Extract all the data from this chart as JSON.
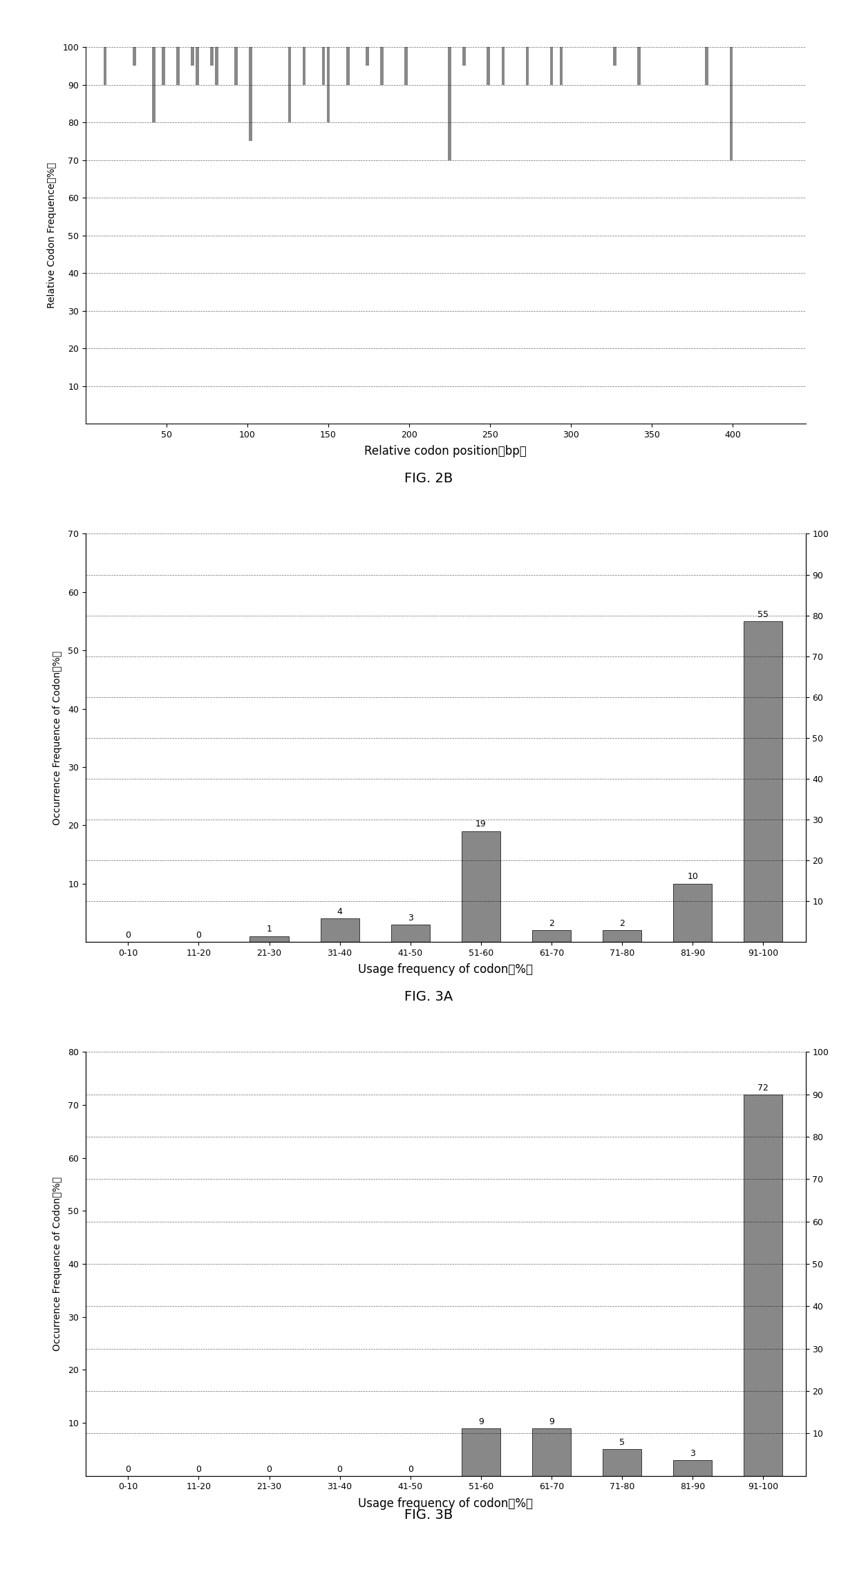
{
  "fig2b": {
    "title": "FIG. 2B",
    "xlabel": "Relative codon position（bp）",
    "ylabel": "Relative Codon Frequence（%）",
    "xlim": [
      0,
      445
    ],
    "ylim": [
      0,
      100
    ],
    "yticks": [
      10,
      20,
      30,
      40,
      50,
      60,
      70,
      80,
      90,
      100
    ],
    "xtick_vals": [
      50,
      100,
      150,
      200,
      250,
      300,
      350,
      400
    ],
    "bar_positions": [
      3,
      6,
      9,
      12,
      15,
      18,
      21,
      24,
      27,
      30,
      33,
      36,
      39,
      42,
      45,
      48,
      51,
      54,
      57,
      60,
      63,
      66,
      69,
      72,
      75,
      78,
      81,
      84,
      87,
      90,
      93,
      96,
      99,
      102,
      105,
      108,
      111,
      114,
      117,
      120,
      123,
      126,
      129,
      132,
      135,
      138,
      141,
      144,
      147,
      150,
      153,
      156,
      159,
      162,
      165,
      168,
      171,
      174,
      177,
      180,
      183,
      186,
      189,
      192,
      195,
      198,
      201,
      204,
      207,
      210,
      213,
      216,
      219,
      222,
      225,
      228,
      231,
      234,
      237,
      240,
      243,
      246,
      249,
      252,
      255,
      258,
      261,
      264,
      267,
      270,
      273,
      276,
      279,
      282,
      285,
      288,
      291,
      294,
      297,
      300,
      303,
      306,
      309,
      312,
      315,
      318,
      321,
      324,
      327,
      330,
      333,
      336,
      339,
      342,
      345,
      348,
      351,
      354,
      357,
      360,
      363,
      366,
      369,
      372,
      375,
      378,
      381,
      384,
      387,
      390,
      393,
      396,
      399,
      402,
      405,
      408,
      411,
      414,
      417,
      420,
      423,
      426,
      429,
      432,
      435
    ],
    "bar_bottoms": [
      100,
      100,
      100,
      90,
      100,
      100,
      100,
      100,
      100,
      95,
      100,
      100,
      100,
      80,
      100,
      90,
      100,
      100,
      90,
      100,
      100,
      95,
      90,
      100,
      100,
      95,
      90,
      100,
      100,
      100,
      90,
      100,
      100,
      75,
      100,
      100,
      100,
      100,
      100,
      100,
      100,
      80,
      100,
      100,
      90,
      100,
      100,
      100,
      90,
      80,
      100,
      100,
      100,
      90,
      100,
      100,
      100,
      95,
      100,
      100,
      90,
      100,
      100,
      100,
      100,
      90,
      100,
      100,
      100,
      100,
      100,
      100,
      100,
      100,
      70,
      100,
      100,
      95,
      100,
      100,
      100,
      100,
      90,
      100,
      100,
      90,
      100,
      100,
      100,
      100,
      90,
      100,
      100,
      100,
      100,
      90,
      100,
      90,
      100,
      100,
      100,
      100,
      100,
      100,
      100,
      100,
      100,
      100,
      95,
      100,
      100,
      100,
      100,
      90,
      100,
      100,
      100,
      100,
      100,
      100,
      100,
      100,
      100,
      100,
      100,
      100,
      100,
      90,
      100,
      100,
      100,
      100,
      70,
      100,
      100,
      100,
      100,
      100,
      100,
      100,
      100,
      100,
      100,
      100,
      100
    ],
    "bar_color": "#888888",
    "bar_width": 2.0
  },
  "fig3a": {
    "title": "FIG. 3A",
    "xlabel": "Usage frequency of codon（%）",
    "ylabel": "Occurrence Frequence of Codon（%）",
    "categories": [
      "0-10",
      "11-20",
      "21-30",
      "31-40",
      "41-50",
      "51-60",
      "61-70",
      "71-80",
      "81-90",
      "91-100"
    ],
    "values": [
      0,
      0,
      1,
      4,
      3,
      19,
      2,
      2,
      10,
      55
    ],
    "ylim_left": [
      0,
      70
    ],
    "ylim_right": [
      0,
      100
    ],
    "yticks_left": [
      10,
      20,
      30,
      40,
      50,
      60,
      70
    ],
    "yticks_right": [
      10,
      20,
      30,
      40,
      50,
      60,
      70,
      80,
      90,
      100
    ],
    "bar_color": "#888888"
  },
  "fig3b": {
    "title": "FIG. 3B",
    "xlabel": "Usage frequency of codon（%）",
    "ylabel": "Occurrence Frequence of Codon（%）",
    "categories": [
      "0-10",
      "11-20",
      "21-30",
      "31-40",
      "41-50",
      "51-60",
      "61-70",
      "71-80",
      "81-90",
      "91-100"
    ],
    "values": [
      0,
      0,
      0,
      0,
      0,
      9,
      9,
      5,
      3,
      72
    ],
    "ylim_left": [
      0,
      80
    ],
    "ylim_right": [
      0,
      100
    ],
    "yticks_left": [
      10,
      20,
      30,
      40,
      50,
      60,
      70,
      80
    ],
    "yticks_right": [
      10,
      20,
      30,
      40,
      50,
      60,
      70,
      80,
      90,
      100
    ],
    "bar_color": "#888888"
  },
  "background_color": "#ffffff",
  "grid_color": "#000000",
  "grid_linestyle": "--",
  "grid_linewidth": 0.5,
  "grid_alpha": 0.6
}
